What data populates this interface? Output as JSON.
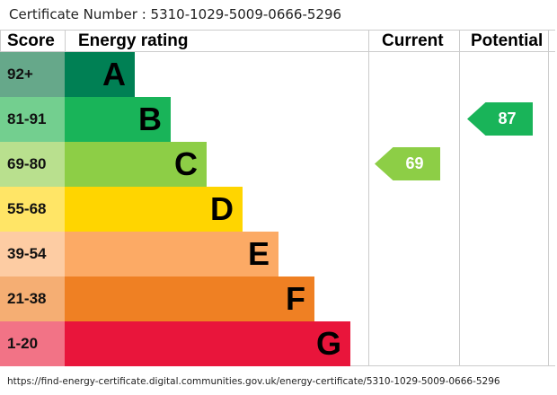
{
  "certificate_label": "Certificate Number : 5310-1029-5009-0666-5296",
  "chart_data": {
    "type": "bar",
    "headers": {
      "score": "Score",
      "rating": "Energy rating",
      "current": "Current",
      "potential": "Potential"
    },
    "bands": [
      {
        "score": "92+",
        "letter": "A",
        "color": "#008054",
        "light": "#66a88a"
      },
      {
        "score": "81-91",
        "letter": "B",
        "color": "#19b459",
        "light": "#73cf8f"
      },
      {
        "score": "69-80",
        "letter": "C",
        "color": "#8dce46",
        "light": "#b9e08e"
      },
      {
        "score": "55-68",
        "letter": "D",
        "color": "#ffd500",
        "light": "#ffe566"
      },
      {
        "score": "39-54",
        "letter": "E",
        "color": "#fcaa65",
        "light": "#fdcca3"
      },
      {
        "score": "21-38",
        "letter": "F",
        "color": "#ef8023",
        "light": "#f5ae73"
      },
      {
        "score": "1-20",
        "letter": "G",
        "color": "#e9153b",
        "light": "#f27386"
      }
    ],
    "current": {
      "value": "69",
      "band": "C",
      "color": "#8dce46"
    },
    "potential": {
      "value": "87",
      "band": "B",
      "color": "#19b459"
    }
  },
  "url": "https://find-energy-certificate.digital.communities.gov.uk/energy-certificate/5310-1029-5009-0666-5296"
}
